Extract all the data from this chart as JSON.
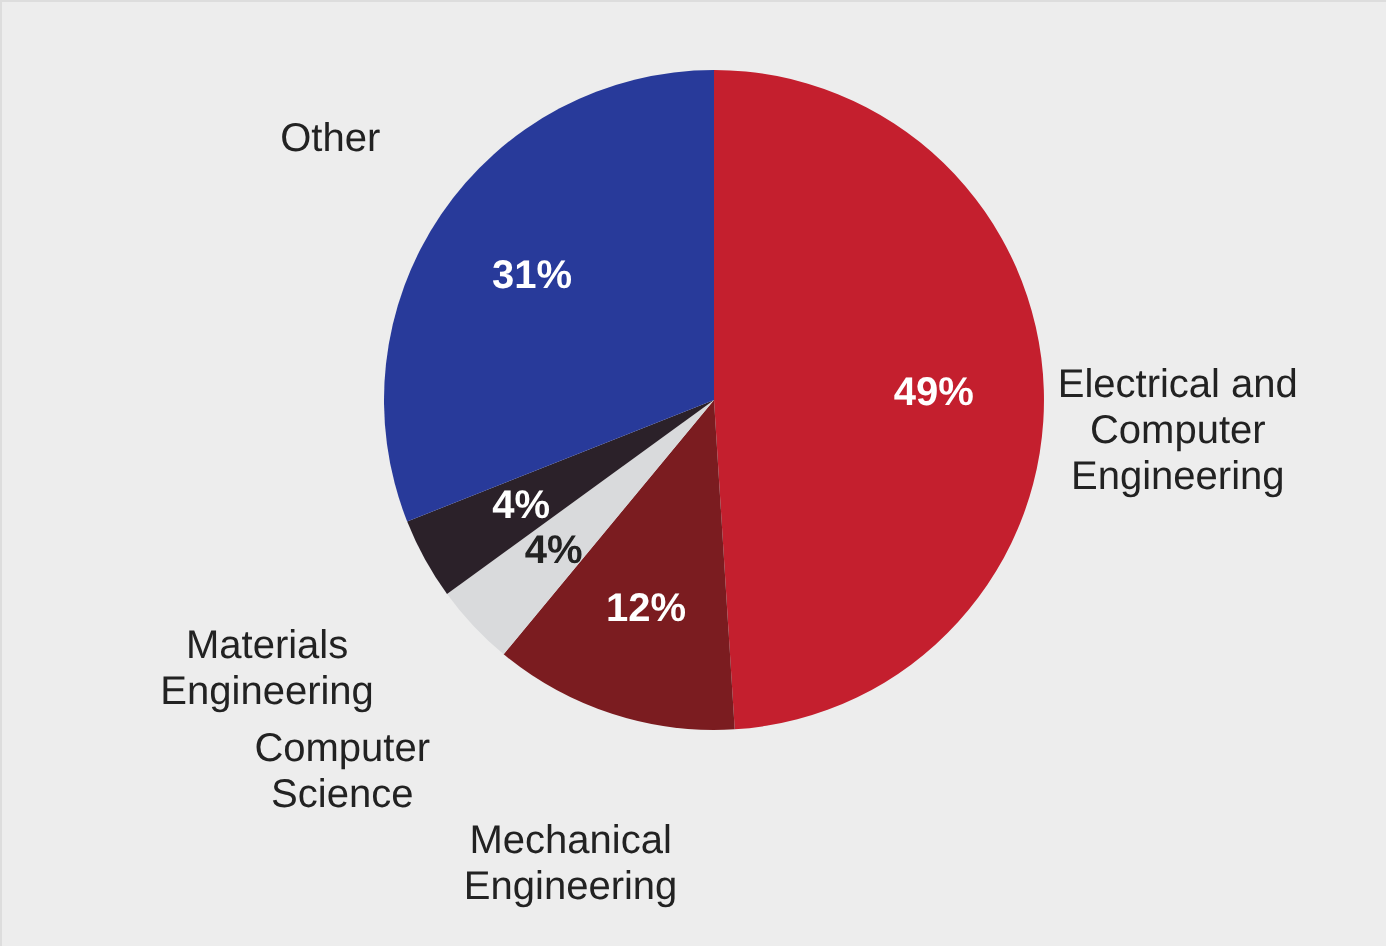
{
  "chart_data": {
    "type": "pie",
    "categories": [
      "Electrical and Computer Engineering",
      "Mechanical Engineering",
      "Computer Science",
      "Materials Engineering",
      "Other"
    ],
    "values": [
      49,
      12,
      4,
      4,
      31
    ],
    "colors": [
      "#c41f2e",
      "#7b1c20",
      "#d9dadc",
      "#2b2129",
      "#283a9a"
    ],
    "value_labels": [
      "49%",
      "12%",
      "4%",
      "4%",
      "31%"
    ]
  }
}
